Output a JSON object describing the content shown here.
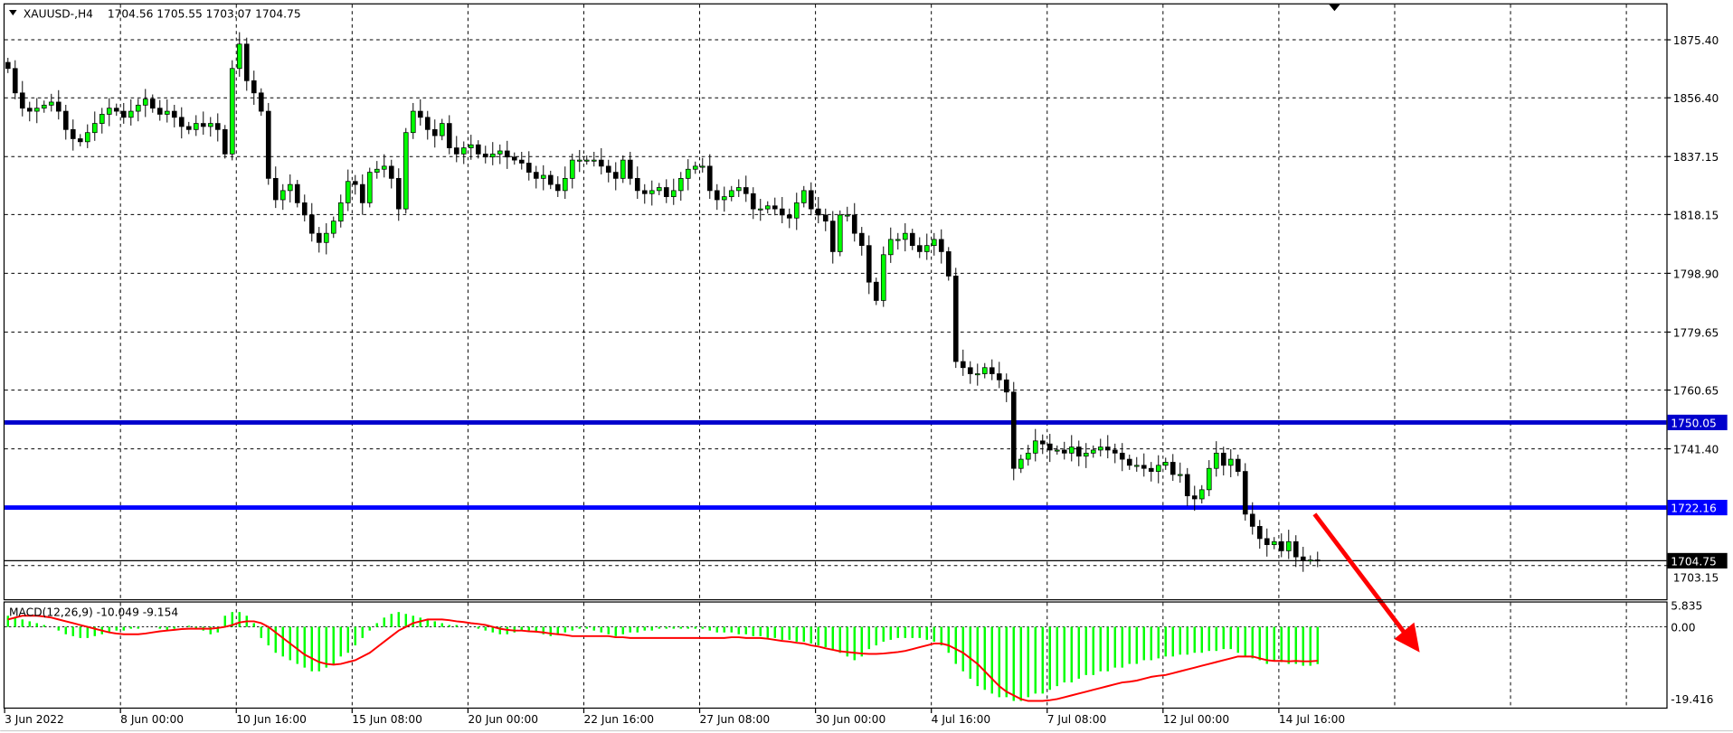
{
  "header": {
    "symbol_timeframe": "XAUUSD-,H4",
    "ohlc_text": "1704.56 1705.55 1703.07 1704.75",
    "menu_icon": "triangle-down-icon"
  },
  "price_axis": {
    "labels": [
      "1875.40",
      "1856.40",
      "1837.15",
      "1818.15",
      "1798.90",
      "1779.65",
      "1760.65",
      "1741.40",
      "1703.15"
    ],
    "level_lines": [
      {
        "label": "1750.05",
        "color": "#0000cc"
      },
      {
        "label": "1722.16",
        "color": "#0000ff"
      }
    ],
    "current_price": "1704.75"
  },
  "macd": {
    "title": "MACD(12,26,9) -10.049 -9.154",
    "axis_labels": [
      "5.835",
      "0.00",
      "-19.416"
    ]
  },
  "time_axis": {
    "labels": [
      "3 Jun 2022",
      "8 Jun 00:00",
      "10 Jun 16:00",
      "15 Jun 08:00",
      "20 Jun 00:00",
      "22 Jun 16:00",
      "27 Jun 08:00",
      "30 Jun 00:00",
      "4 Jul 16:00",
      "7 Jul 08:00",
      "12 Jul 00:00",
      "14 Jul 16:00"
    ]
  },
  "annotation": {
    "type": "arrow",
    "direction": "down-right",
    "color": "#ff0000"
  },
  "colors": {
    "bull": "#00ff00",
    "bear": "#000000",
    "histogram": "#00ff00",
    "signal": "#ff0000",
    "grid": "#000000"
  },
  "chart_data": {
    "type": "candlestick",
    "symbol": "XAUUSD-",
    "timeframe": "H4",
    "ylim": [
      1698,
      1882
    ],
    "closes": [
      1866,
      1858,
      1853,
      1852,
      1853,
      1854,
      1855,
      1852,
      1846,
      1843,
      1842,
      1845,
      1848,
      1851,
      1853,
      1852,
      1850,
      1852,
      1854,
      1856,
      1853,
      1851,
      1852,
      1850,
      1847,
      1846,
      1848,
      1847,
      1848,
      1846,
      1838,
      1866,
      1874,
      1862,
      1858,
      1852,
      1830,
      1823,
      1826,
      1828,
      1822,
      1818,
      1812,
      1809,
      1812,
      1816,
      1822,
      1829,
      1828,
      1822,
      1832,
      1833,
      1834,
      1830,
      1820,
      1845,
      1852,
      1850,
      1846,
      1844,
      1848,
      1840,
      1838,
      1840,
      1841,
      1838,
      1837,
      1838,
      1839,
      1837,
      1836,
      1835,
      1832,
      1830,
      1831,
      1828,
      1826,
      1830,
      1836,
      1836,
      1836,
      1836,
      1834,
      1832,
      1830,
      1836,
      1830,
      1826,
      1825,
      1826,
      1827,
      1824,
      1826,
      1830,
      1833,
      1834,
      1834,
      1826,
      1823,
      1824,
      1826,
      1827,
      1825,
      1820,
      1820,
      1821,
      1820,
      1818,
      1817,
      1822,
      1826,
      1820,
      1818,
      1816,
      1806,
      1818,
      1818,
      1812,
      1808,
      1796,
      1790,
      1805,
      1810,
      1810,
      1812,
      1808,
      1806,
      1808,
      1810,
      1806,
      1798,
      1770,
      1768,
      1766,
      1766,
      1768,
      1766,
      1764,
      1760,
      1735,
      1738,
      1740,
      1744,
      1743,
      1741,
      1741,
      1740,
      1742,
      1739,
      1740,
      1741,
      1742,
      1741,
      1740,
      1738,
      1736,
      1736,
      1735,
      1734,
      1736,
      1737,
      1733,
      1733,
      1726,
      1725,
      1728,
      1735,
      1740,
      1736,
      1738,
      1734,
      1720,
      1716,
      1712,
      1710,
      1711,
      1708,
      1711,
      1706,
      1705,
      1705,
      1704.75
    ],
    "levels": [
      1750.05,
      1722.16
    ],
    "macd": {
      "ylim": [
        -19.416,
        5.835
      ],
      "histogram": [
        3,
        2.5,
        2,
        1.5,
        1,
        0.5,
        0,
        -1,
        -2,
        -2.5,
        -3,
        -3,
        -2.5,
        -2,
        -1.5,
        -1,
        -1,
        -0.5,
        -0.5,
        0,
        0,
        -0.5,
        -1,
        -0.5,
        0,
        0.3,
        -0.5,
        -1,
        -2,
        -1.5,
        3,
        4,
        4,
        3,
        1,
        -3,
        -5,
        -7,
        -8,
        -9,
        -10,
        -11,
        -12,
        -12,
        -11,
        -10,
        -8,
        -7,
        -5,
        -3,
        -1,
        1,
        2.5,
        3.5,
        4,
        3.5,
        3,
        2.5,
        2,
        1.5,
        1,
        0.5,
        0.5,
        0,
        0,
        -0.5,
        -1,
        -1.5,
        -2,
        -2,
        -1.5,
        -1,
        -1,
        -1.5,
        -2,
        -2.5,
        -2,
        -1.5,
        -1,
        -0.5,
        -0.5,
        -1,
        -1.5,
        -2,
        -2.5,
        -2,
        -1.5,
        -1.5,
        -1,
        -1,
        -0.5,
        -0.5,
        -0.5,
        -0.5,
        -0.5,
        -0.5,
        -0.5,
        -1,
        -1.5,
        -1.5,
        -1.5,
        -2,
        -2,
        -2.5,
        -2.5,
        -3,
        -3,
        -3.5,
        -3.5,
        -4,
        -4,
        -4.5,
        -5,
        -5.5,
        -6,
        -7,
        -8,
        -9,
        -8,
        -6,
        -5,
        -4,
        -3.5,
        -3,
        -3,
        -3,
        -3,
        -3.5,
        -4,
        -5,
        -7,
        -10,
        -12,
        -14,
        -16,
        -17,
        -18,
        -19,
        -19,
        -20,
        -20,
        -19,
        -18,
        -18,
        -17,
        -16,
        -15,
        -15,
        -14,
        -13,
        -13,
        -12,
        -12,
        -11,
        -11,
        -10,
        -10,
        -9,
        -9,
        -8.5,
        -8,
        -8,
        -7.5,
        -7.5,
        -7,
        -7,
        -6.5,
        -6.5,
        -6,
        -6,
        -7,
        -8,
        -8.5,
        -9,
        -10,
        -9,
        -9.5,
        -10,
        -10,
        -10.5,
        -10.5,
        -10.049
      ],
      "signal": [
        2,
        2.5,
        3,
        3,
        3,
        2.8,
        2.5,
        2,
        1.5,
        1,
        0.5,
        0,
        -0.5,
        -1,
        -1.5,
        -1.8,
        -2,
        -2,
        -2,
        -1.8,
        -1.5,
        -1.2,
        -1,
        -0.8,
        -0.6,
        -0.5,
        -0.5,
        -0.5,
        -0.5,
        -0.3,
        0,
        0.5,
        1.2,
        1.5,
        1.5,
        1,
        0,
        -1.5,
        -3,
        -4.5,
        -6,
        -7.5,
        -8.5,
        -9.5,
        -10,
        -10.2,
        -10,
        -9.5,
        -9,
        -8,
        -7,
        -5.5,
        -4,
        -2.5,
        -1,
        0,
        1,
        1.5,
        2,
        2,
        2,
        1.8,
        1.5,
        1.3,
        1,
        0.8,
        0.5,
        0,
        -0.5,
        -0.8,
        -1,
        -1,
        -1.2,
        -1.3,
        -1.5,
        -1.8,
        -2,
        -2.2,
        -2.5,
        -2.5,
        -2.5,
        -2.5,
        -2.5,
        -2.5,
        -2.8,
        -2.8,
        -3,
        -3,
        -3,
        -3,
        -3,
        -3,
        -3,
        -3,
        -3,
        -3,
        -3,
        -3,
        -3,
        -3,
        -2.8,
        -2.8,
        -3,
        -3,
        -3,
        -3.2,
        -3.5,
        -3.8,
        -4,
        -4.3,
        -4.5,
        -5,
        -5.3,
        -5.8,
        -6.2,
        -6.6,
        -6.8,
        -7,
        -7.2,
        -7.3,
        -7.3,
        -7.2,
        -7,
        -6.8,
        -6.5,
        -6,
        -5.5,
        -5,
        -4.5,
        -4.5,
        -5,
        -6,
        -7,
        -8.5,
        -10,
        -12,
        -14,
        -16,
        -17.5,
        -18.5,
        -19.5,
        -20,
        -20,
        -20,
        -19.8,
        -19.5,
        -19,
        -18.5,
        -18,
        -17.5,
        -17,
        -16.5,
        -16,
        -15.5,
        -15,
        -14.8,
        -14.5,
        -14,
        -13.5,
        -13.2,
        -13,
        -12.5,
        -12,
        -11.5,
        -11,
        -10.5,
        -10,
        -9.5,
        -9,
        -8.5,
        -8,
        -8,
        -8,
        -8.5,
        -9,
        -9.2,
        -9.2,
        -9.3,
        -9.2,
        -9.3,
        -9.3,
        -9.154
      ]
    }
  }
}
